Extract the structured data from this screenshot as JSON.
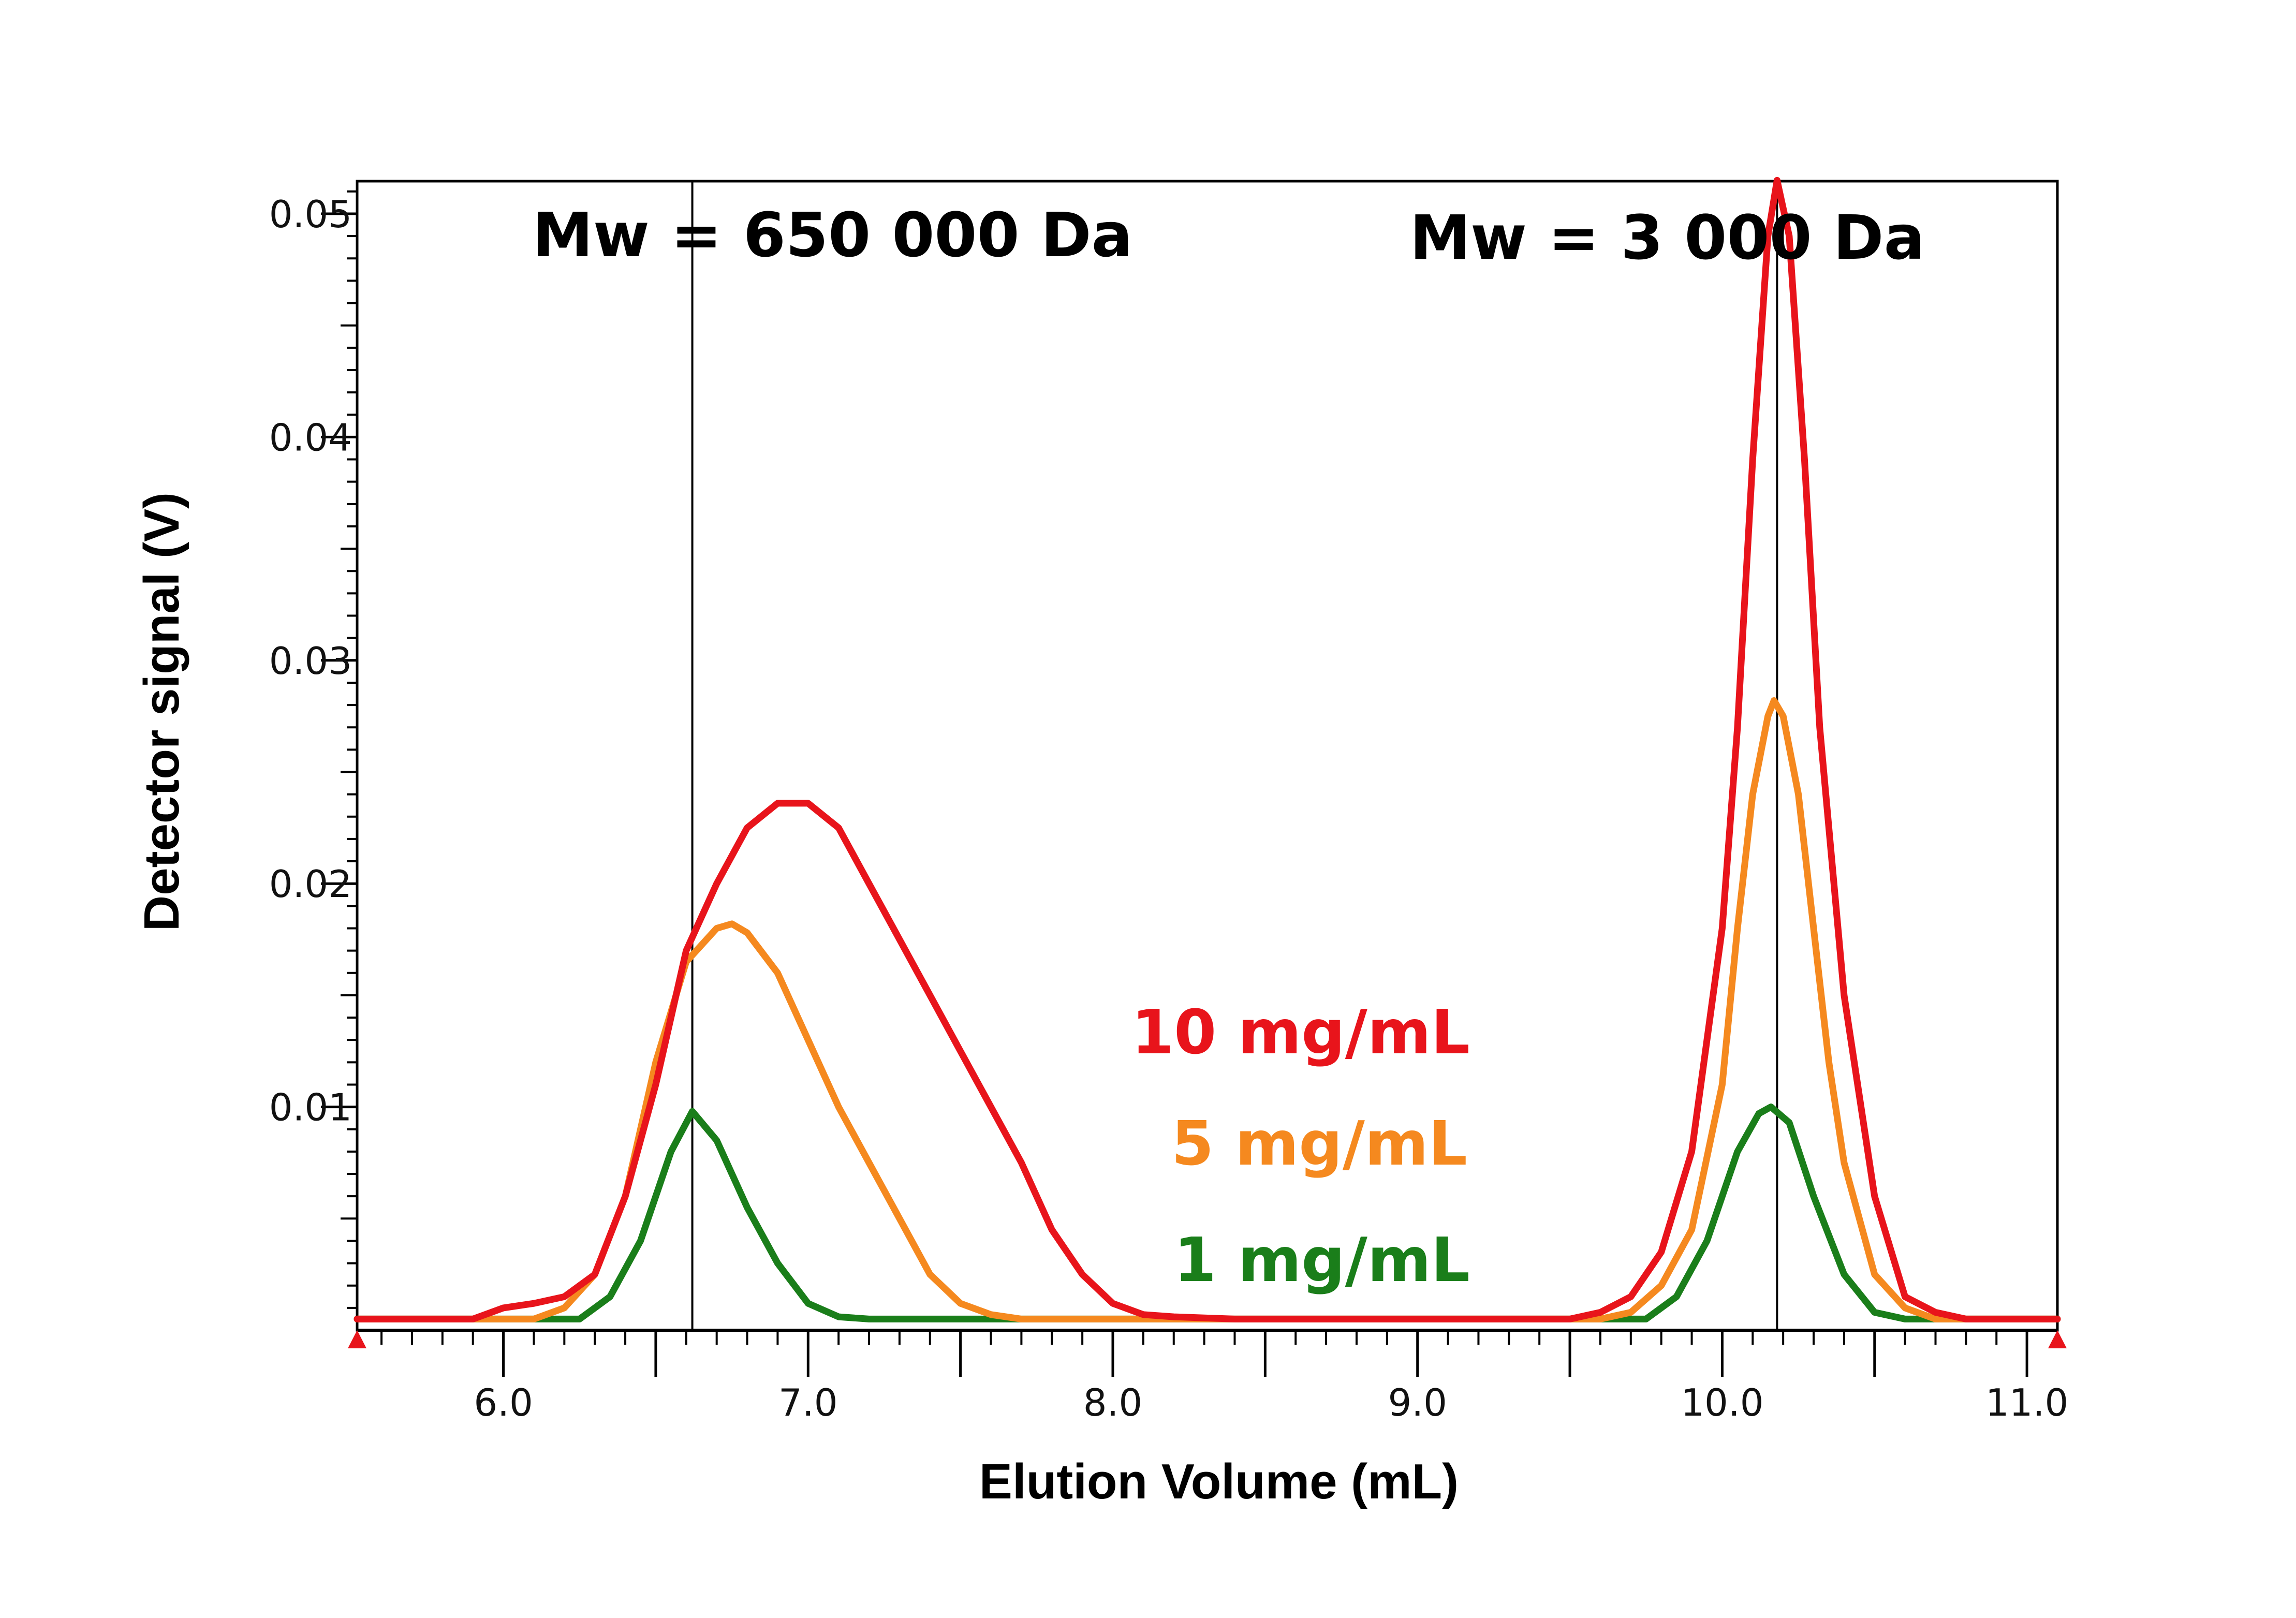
{
  "chart_data": {
    "type": "line",
    "title": "",
    "xlabel": "Elution Volume (mL)",
    "ylabel": "Detector signal (V)",
    "xlim": [
      5.52,
      11.1
    ],
    "ylim": [
      0.0,
      0.0515
    ],
    "x_ticks": [
      6.0,
      7.0,
      8.0,
      9.0,
      10.0,
      11.0
    ],
    "x_tick_labels": [
      "6.0",
      "7.0",
      "8.0",
      "9.0",
      "10.0",
      "11.0"
    ],
    "y_ticks": [
      0.01,
      0.02,
      0.03,
      0.04,
      0.05
    ],
    "y_tick_labels": [
      "0.01",
      "0.02",
      "0.03",
      "0.04",
      "0.05"
    ],
    "baseline": 0.0005,
    "grid": false,
    "annotations": [
      {
        "text": "Mw = 650 000 Da",
        "x": 7.08
      },
      {
        "text": "Mw = 3 000 Da",
        "x": 9.82
      }
    ],
    "reference_lines_x": [
      6.62,
      10.18
    ],
    "series": [
      {
        "name": "10 mg/mL",
        "color": "#e8141b",
        "points": [
          [
            5.52,
            0.0005
          ],
          [
            5.9,
            0.0005
          ],
          [
            6.0,
            0.001
          ],
          [
            6.1,
            0.0012
          ],
          [
            6.2,
            0.0015
          ],
          [
            6.3,
            0.0025
          ],
          [
            6.4,
            0.006
          ],
          [
            6.5,
            0.011
          ],
          [
            6.6,
            0.017
          ],
          [
            6.7,
            0.02
          ],
          [
            6.8,
            0.0225
          ],
          [
            6.9,
            0.0236
          ],
          [
            7.0,
            0.0236
          ],
          [
            7.1,
            0.0225
          ],
          [
            7.2,
            0.02
          ],
          [
            7.3,
            0.0175
          ],
          [
            7.4,
            0.015
          ],
          [
            7.5,
            0.0125
          ],
          [
            7.6,
            0.01
          ],
          [
            7.7,
            0.0075
          ],
          [
            7.8,
            0.0045
          ],
          [
            7.9,
            0.0025
          ],
          [
            8.0,
            0.0012
          ],
          [
            8.1,
            0.0007
          ],
          [
            8.2,
            0.0006
          ],
          [
            8.4,
            0.0005
          ],
          [
            9.5,
            0.0005
          ],
          [
            9.6,
            0.0008
          ],
          [
            9.7,
            0.0015
          ],
          [
            9.8,
            0.0035
          ],
          [
            9.9,
            0.008
          ],
          [
            10.0,
            0.018
          ],
          [
            10.05,
            0.027
          ],
          [
            10.1,
            0.039
          ],
          [
            10.15,
            0.049
          ],
          [
            10.18,
            0.0515
          ],
          [
            10.22,
            0.049
          ],
          [
            10.27,
            0.039
          ],
          [
            10.32,
            0.027
          ],
          [
            10.4,
            0.015
          ],
          [
            10.5,
            0.006
          ],
          [
            10.6,
            0.0015
          ],
          [
            10.7,
            0.0008
          ],
          [
            10.8,
            0.0005
          ],
          [
            11.1,
            0.0005
          ]
        ]
      },
      {
        "name": "5 mg/mL",
        "color": "#f5891f",
        "points": [
          [
            5.52,
            0.0005
          ],
          [
            6.1,
            0.0005
          ],
          [
            6.2,
            0.001
          ],
          [
            6.3,
            0.0025
          ],
          [
            6.4,
            0.006
          ],
          [
            6.5,
            0.012
          ],
          [
            6.6,
            0.0165
          ],
          [
            6.7,
            0.018
          ],
          [
            6.75,
            0.0182
          ],
          [
            6.8,
            0.0178
          ],
          [
            6.9,
            0.016
          ],
          [
            7.0,
            0.013
          ],
          [
            7.1,
            0.01
          ],
          [
            7.2,
            0.0075
          ],
          [
            7.3,
            0.005
          ],
          [
            7.4,
            0.0025
          ],
          [
            7.5,
            0.0012
          ],
          [
            7.6,
            0.0007
          ],
          [
            7.7,
            0.0005
          ],
          [
            9.6,
            0.0005
          ],
          [
            9.7,
            0.0008
          ],
          [
            9.8,
            0.002
          ],
          [
            9.9,
            0.0045
          ],
          [
            10.0,
            0.011
          ],
          [
            10.05,
            0.018
          ],
          [
            10.1,
            0.024
          ],
          [
            10.15,
            0.0275
          ],
          [
            10.17,
            0.0282
          ],
          [
            10.2,
            0.0275
          ],
          [
            10.25,
            0.024
          ],
          [
            10.3,
            0.018
          ],
          [
            10.35,
            0.012
          ],
          [
            10.4,
            0.0075
          ],
          [
            10.5,
            0.0025
          ],
          [
            10.6,
            0.001
          ],
          [
            10.7,
            0.0005
          ],
          [
            11.1,
            0.0005
          ]
        ]
      },
      {
        "name": "1 mg/mL",
        "color": "#1a7e1a",
        "points": [
          [
            5.52,
            0.0005
          ],
          [
            6.25,
            0.0005
          ],
          [
            6.35,
            0.0015
          ],
          [
            6.45,
            0.004
          ],
          [
            6.55,
            0.008
          ],
          [
            6.62,
            0.0098
          ],
          [
            6.7,
            0.0085
          ],
          [
            6.8,
            0.0055
          ],
          [
            6.9,
            0.003
          ],
          [
            7.0,
            0.0012
          ],
          [
            7.1,
            0.0006
          ],
          [
            7.2,
            0.0005
          ],
          [
            9.75,
            0.0005
          ],
          [
            9.85,
            0.0015
          ],
          [
            9.95,
            0.004
          ],
          [
            10.05,
            0.008
          ],
          [
            10.12,
            0.0097
          ],
          [
            10.16,
            0.01
          ],
          [
            10.22,
            0.0093
          ],
          [
            10.3,
            0.006
          ],
          [
            10.4,
            0.0025
          ],
          [
            10.5,
            0.0008
          ],
          [
            10.6,
            0.0005
          ],
          [
            11.1,
            0.0005
          ]
        ]
      }
    ]
  }
}
